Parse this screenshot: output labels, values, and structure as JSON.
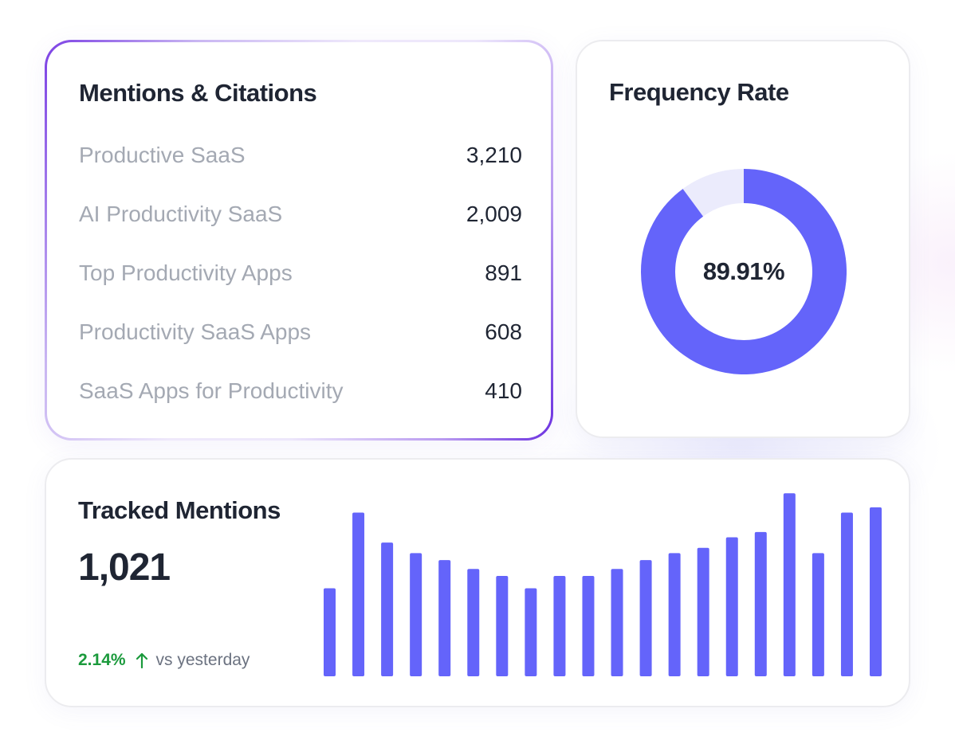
{
  "mentions_card": {
    "title": "Mentions & Citations",
    "items": [
      {
        "label": "Productive SaaS",
        "count": "3,210"
      },
      {
        "label": "AI Productivity SaaS",
        "count": "2,009"
      },
      {
        "label": "Top Productivity Apps",
        "count": "891"
      },
      {
        "label": "Productivity SaaS Apps",
        "count": "608"
      },
      {
        "label": "SaaS Apps for Productivity",
        "count": "410"
      }
    ]
  },
  "frequency_card": {
    "title": "Frequency Rate",
    "value_label": "89.91%",
    "value": 89.91,
    "colors": {
      "fill": "#6464fa",
      "track": "#ebebfc"
    }
  },
  "tracked_card": {
    "title": "Tracked Mentions",
    "value": "1,021",
    "change_pct": "2.14%",
    "change_icon": "arrow-up-icon",
    "change_text": "vs yesterday",
    "colors": {
      "bar": "#6464fa",
      "positive": "#1b9a3c"
    }
  },
  "chart_data": {
    "type": "bar",
    "values": [
      100,
      186,
      152,
      140,
      132,
      122,
      114,
      100,
      114,
      114,
      122,
      132,
      140,
      146,
      158,
      164,
      208,
      140,
      186,
      192
    ],
    "ylim": [
      0,
      210
    ],
    "grid": false
  }
}
